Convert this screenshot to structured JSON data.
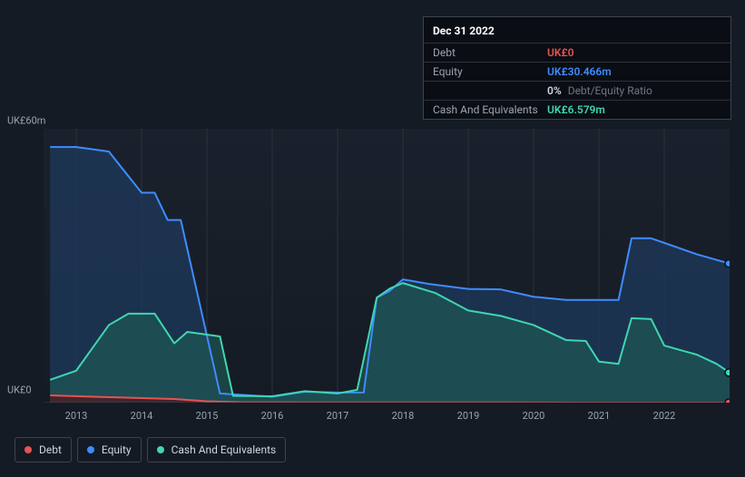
{
  "tooltip": {
    "date": "Dec 31 2022",
    "rows": [
      {
        "label": "Debt",
        "value": "UK£0",
        "color": "#e55353",
        "sub": ""
      },
      {
        "label": "Equity",
        "value": "UK£30.466m",
        "color": "#3f8cff",
        "sub": ""
      },
      {
        "label": "",
        "value": "0%",
        "color": "#cfd6e1",
        "sub": "Debt/Equity Ratio"
      },
      {
        "label": "Cash And Equivalents",
        "value": "UK£6.579m",
        "color": "#3fd6b0",
        "sub": ""
      }
    ]
  },
  "chart": {
    "type": "area",
    "background": "#151b24",
    "plot_bg_top": "#1a212c",
    "plot_bg_bottom": "#151b24",
    "grid_color": "#2a323d",
    "axis_color": "#3a4350",
    "y_label_top": "UK£60m",
    "y_label_bottom": "UK£0",
    "ylim": [
      0,
      60
    ],
    "xlim": [
      2012.5,
      2023
    ],
    "xticks": [
      2013,
      2014,
      2015,
      2016,
      2017,
      2018,
      2019,
      2020,
      2021,
      2022
    ],
    "series": [
      {
        "name": "Equity",
        "color": "#3f8cff",
        "fill": "#1e3a5c",
        "fill_opacity": 0.75,
        "line_width": 2,
        "data": [
          [
            2012.6,
            56
          ],
          [
            2013.0,
            56
          ],
          [
            2013.5,
            55
          ],
          [
            2014.0,
            46
          ],
          [
            2014.2,
            46
          ],
          [
            2014.4,
            40
          ],
          [
            2014.6,
            40
          ],
          [
            2015.2,
            2
          ],
          [
            2016.0,
            1.3
          ],
          [
            2016.5,
            2.4
          ],
          [
            2017.0,
            2.2
          ],
          [
            2017.4,
            2.2
          ],
          [
            2017.6,
            23
          ],
          [
            2017.8,
            24.5
          ],
          [
            2018.0,
            27
          ],
          [
            2018.4,
            26
          ],
          [
            2019.0,
            24.9
          ],
          [
            2019.5,
            24.8
          ],
          [
            2020.0,
            23.2
          ],
          [
            2020.5,
            22.5
          ],
          [
            2021.0,
            22.5
          ],
          [
            2021.3,
            22.5
          ],
          [
            2021.5,
            36
          ],
          [
            2021.8,
            36
          ],
          [
            2022.0,
            35
          ],
          [
            2022.5,
            32.5
          ],
          [
            2023.0,
            30.47
          ]
        ]
      },
      {
        "name": "Cash And Equivalents",
        "color": "#3fd6b0",
        "fill": "#1f5a56",
        "fill_opacity": 0.65,
        "line_width": 2,
        "data": [
          [
            2012.6,
            5
          ],
          [
            2013.0,
            7
          ],
          [
            2013.5,
            17
          ],
          [
            2013.8,
            19.5
          ],
          [
            2014.2,
            19.5
          ],
          [
            2014.5,
            13
          ],
          [
            2014.7,
            15.5
          ],
          [
            2015.2,
            14.5
          ],
          [
            2015.4,
            1.5
          ],
          [
            2016.0,
            1.4
          ],
          [
            2016.5,
            2.5
          ],
          [
            2017.0,
            2.0
          ],
          [
            2017.3,
            2.8
          ],
          [
            2017.6,
            23
          ],
          [
            2017.8,
            25
          ],
          [
            2018.0,
            26.2
          ],
          [
            2018.5,
            24.0
          ],
          [
            2019.0,
            20.2
          ],
          [
            2019.5,
            19.0
          ],
          [
            2020.0,
            17.0
          ],
          [
            2020.5,
            13.7
          ],
          [
            2020.8,
            13.5
          ],
          [
            2021.0,
            9.0
          ],
          [
            2021.3,
            8.5
          ],
          [
            2021.5,
            18.5
          ],
          [
            2021.8,
            18.3
          ],
          [
            2022.0,
            12.5
          ],
          [
            2022.5,
            10.5
          ],
          [
            2022.8,
            8.5
          ],
          [
            2023.0,
            6.58
          ]
        ]
      },
      {
        "name": "Debt",
        "color": "#e55353",
        "fill": "#4a1f25",
        "fill_opacity": 0.85,
        "line_width": 2,
        "data": [
          [
            2012.6,
            1.6
          ],
          [
            2013.5,
            1.2
          ],
          [
            2014.5,
            0.8
          ],
          [
            2015.0,
            0.3
          ],
          [
            2015.5,
            0.1
          ],
          [
            2016.5,
            0.05
          ],
          [
            2018.0,
            0.05
          ],
          [
            2019.5,
            0.05
          ],
          [
            2021.0,
            0.0
          ],
          [
            2023.0,
            0.0
          ]
        ]
      }
    ],
    "endpoints": [
      {
        "name": "Equity",
        "y": 30.47,
        "color": "#3f8cff"
      },
      {
        "name": "Cash And Equivalents",
        "y": 6.58,
        "color": "#3fd6b0"
      },
      {
        "name": "Debt",
        "y": 0.0,
        "color": "#e55353"
      }
    ]
  },
  "legend": {
    "items": [
      {
        "name": "Debt",
        "color": "#e55353"
      },
      {
        "name": "Equity",
        "color": "#3f8cff"
      },
      {
        "name": "Cash And Equivalents",
        "color": "#3fd6b0"
      }
    ]
  }
}
